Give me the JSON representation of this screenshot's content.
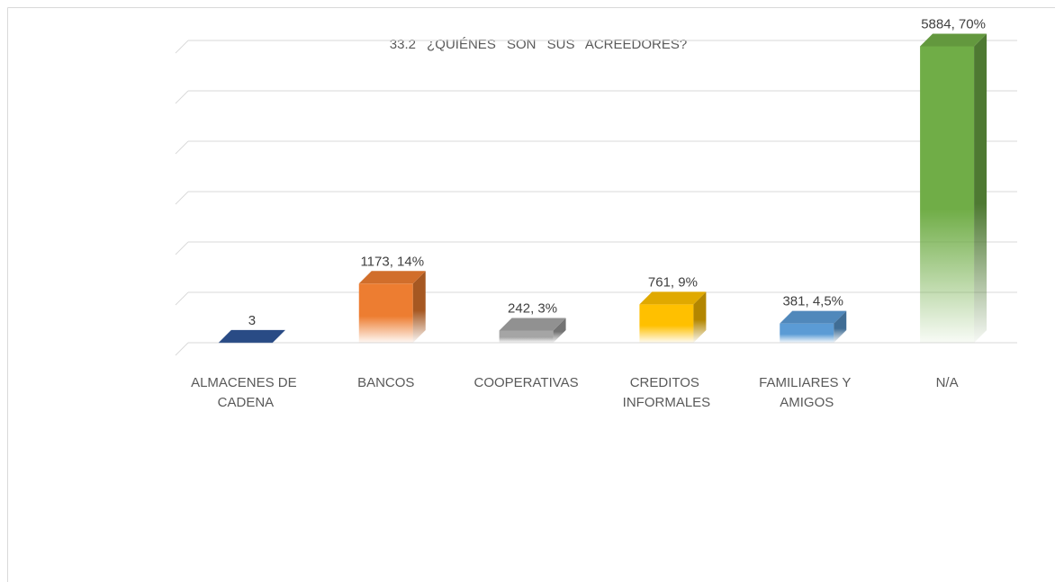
{
  "chart_data": {
    "type": "bar3d",
    "title": "33.2 ¿QUIÉNES SON SUS ACREEDORES?",
    "categories": [
      "ALMACENES DE CADENA",
      "BANCOS",
      "COOPERATIVAS",
      "CREDITOS INFORMALES",
      "FAMILIARES Y AMIGOS",
      "N/A"
    ],
    "values": [
      3,
      1173,
      242,
      761,
      381,
      5884
    ],
    "value_labels": [
      "3",
      "1173, 14%",
      "242, 3%",
      "761, 9%",
      "381, 4,5%",
      "5884, 70%"
    ],
    "colors": [
      "#2f5597",
      "#ed7d31",
      "#a5a5a5",
      "#ffc000",
      "#5b9bd5",
      "#70ad47"
    ],
    "ylim": [
      0,
      6000
    ],
    "yticks": [
      0,
      1000,
      2000,
      3000,
      4000,
      5000,
      6000
    ],
    "grid": true
  }
}
